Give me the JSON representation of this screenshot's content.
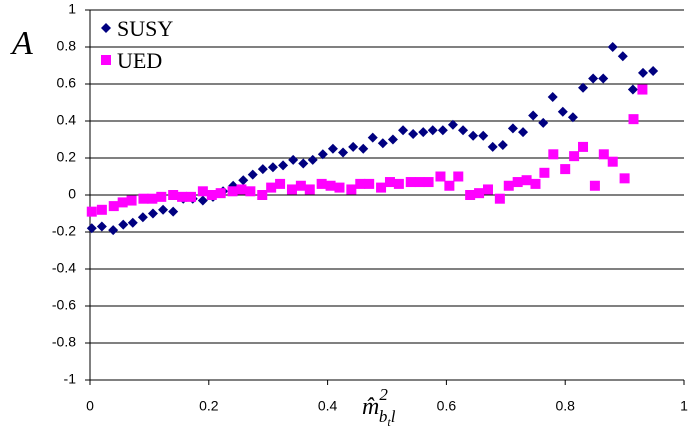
{
  "chart_data": {
    "type": "scatter",
    "y_label": "A",
    "x_label": {
      "base": "m̂",
      "sup": "2",
      "sub": "b",
      "sub_sub": "t",
      "sub_tail": "l"
    },
    "xlim": [
      0,
      1
    ],
    "xticks": [
      0,
      0.2,
      0.4,
      0.6,
      0.8,
      1
    ],
    "ylim": [
      -1,
      1
    ],
    "yticks": [
      -1,
      -0.8,
      -0.6,
      -0.4,
      -0.2,
      0,
      0.2,
      0.4,
      0.6,
      0.8,
      1
    ],
    "grid": true,
    "legend": "upper-left",
    "series": [
      {
        "name": "SUSY",
        "color": "#000080",
        "marker": "diamond",
        "x": [
          0.003,
          0.02,
          0.039,
          0.056,
          0.072,
          0.089,
          0.106,
          0.123,
          0.14,
          0.157,
          0.173,
          0.19,
          0.207,
          0.224,
          0.241,
          0.258,
          0.274,
          0.291,
          0.308,
          0.325,
          0.342,
          0.359,
          0.375,
          0.392,
          0.409,
          0.426,
          0.443,
          0.46,
          0.476,
          0.493,
          0.51,
          0.527,
          0.544,
          0.561,
          0.577,
          0.594,
          0.611,
          0.628,
          0.645,
          0.662,
          0.678,
          0.695,
          0.712,
          0.729,
          0.746,
          0.763,
          0.779,
          0.796,
          0.813,
          0.83,
          0.847,
          0.864,
          0.88,
          0.897,
          0.914,
          0.931,
          0.948
        ],
        "values": [
          -0.18,
          -0.17,
          -0.19,
          -0.16,
          -0.15,
          -0.12,
          -0.1,
          -0.08,
          -0.09,
          -0.02,
          -0.02,
          -0.03,
          -0.01,
          0.02,
          0.05,
          0.08,
          0.11,
          0.14,
          0.15,
          0.16,
          0.19,
          0.17,
          0.19,
          0.22,
          0.25,
          0.23,
          0.26,
          0.25,
          0.31,
          0.28,
          0.3,
          0.35,
          0.33,
          0.34,
          0.35,
          0.35,
          0.38,
          0.35,
          0.32,
          0.32,
          0.26,
          0.27,
          0.36,
          0.34,
          0.43,
          0.39,
          0.53,
          0.45,
          0.42,
          0.58,
          0.63,
          0.63,
          0.8,
          0.75,
          0.57,
          0.66,
          0.67
        ]
      },
      {
        "name": "UED",
        "color": "#ff00ff",
        "marker": "square",
        "x": [
          0.003,
          0.02,
          0.04,
          0.055,
          0.07,
          0.09,
          0.105,
          0.12,
          0.14,
          0.155,
          0.17,
          0.19,
          0.205,
          0.22,
          0.24,
          0.255,
          0.27,
          0.29,
          0.305,
          0.32,
          0.34,
          0.355,
          0.37,
          0.39,
          0.405,
          0.42,
          0.44,
          0.455,
          0.47,
          0.49,
          0.505,
          0.52,
          0.54,
          0.555,
          0.57,
          0.59,
          0.605,
          0.62,
          0.64,
          0.655,
          0.67,
          0.69,
          0.705,
          0.72,
          0.735,
          0.75,
          0.765,
          0.78,
          0.8,
          0.815,
          0.83,
          0.85,
          0.865,
          0.88,
          0.9,
          0.915,
          0.93
        ],
        "values": [
          -0.09,
          -0.08,
          -0.06,
          -0.04,
          -0.03,
          -0.02,
          -0.02,
          -0.01,
          0,
          -0.01,
          -0.01,
          0.02,
          0,
          0.01,
          0.02,
          0.03,
          0.02,
          0,
          0.04,
          0.06,
          0.03,
          0.05,
          0.03,
          0.06,
          0.05,
          0.04,
          0.03,
          0.06,
          0.06,
          0.04,
          0.07,
          0.06,
          0.07,
          0.07,
          0.07,
          0.1,
          0.05,
          0.1,
          0,
          0.01,
          0.03,
          -0.02,
          0.05,
          0.07,
          0.08,
          0.06,
          0.12,
          0.22,
          0.14,
          0.21,
          0.26,
          0.05,
          0.22,
          0.18,
          0.09,
          0.41,
          0.57
        ]
      }
    ]
  }
}
